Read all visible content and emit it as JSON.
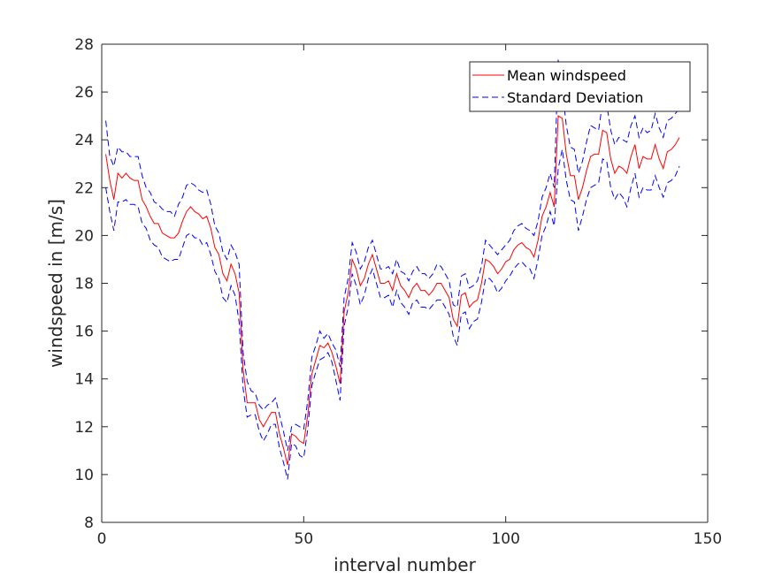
{
  "chart_data": {
    "type": "line",
    "title": "",
    "xlabel": "interval number",
    "ylabel": "windspeed in [m/s]",
    "xlim": [
      0,
      150
    ],
    "ylim": [
      8,
      28
    ],
    "xticks": [
      0,
      50,
      100,
      150
    ],
    "yticks": [
      8,
      10,
      12,
      14,
      16,
      18,
      20,
      22,
      24,
      26,
      28
    ],
    "grid": false,
    "legend_position": "top-right",
    "colors": {
      "mean": "#ff0000",
      "std": "#0000ff",
      "axis": "#262626"
    },
    "series": [
      {
        "name": "Mean windspeed",
        "style": "solid",
        "x": [
          1,
          2,
          3,
          4,
          5,
          6,
          7,
          8,
          9,
          10,
          11,
          12,
          13,
          14,
          15,
          16,
          17,
          18,
          19,
          20,
          21,
          22,
          23,
          24,
          25,
          26,
          27,
          28,
          29,
          30,
          31,
          32,
          33,
          34,
          35,
          36,
          37,
          38,
          39,
          40,
          41,
          42,
          43,
          44,
          45,
          46,
          47,
          48,
          49,
          50,
          51,
          52,
          53,
          54,
          55,
          56,
          57,
          58,
          59,
          60,
          61,
          62,
          63,
          64,
          65,
          66,
          67,
          68,
          69,
          70,
          71,
          72,
          73,
          74,
          75,
          76,
          77,
          78,
          79,
          80,
          81,
          82,
          83,
          84,
          85,
          86,
          87,
          88,
          89,
          90,
          91,
          92,
          93,
          94,
          95,
          96,
          97,
          98,
          99,
          100,
          101,
          102,
          103,
          104,
          105,
          106,
          107,
          108,
          109,
          110,
          111,
          112,
          113,
          114,
          115,
          116,
          117,
          118,
          119,
          120,
          121,
          122,
          123,
          124,
          125,
          126,
          127,
          128,
          129,
          130,
          131,
          132,
          133,
          134,
          135,
          136,
          137,
          138,
          139,
          140,
          141,
          142,
          143
        ],
        "y": [
          23.4,
          22.3,
          21.5,
          22.6,
          22.4,
          22.6,
          22.4,
          22.3,
          22.3,
          21.5,
          21.2,
          20.8,
          20.5,
          20.5,
          20.1,
          20.0,
          19.9,
          19.9,
          20.1,
          20.6,
          21.0,
          21.2,
          21.0,
          20.9,
          20.7,
          20.8,
          20.3,
          19.5,
          19.2,
          18.4,
          18.1,
          18.8,
          18.4,
          17.6,
          14.4,
          13.0,
          13.0,
          13.0,
          12.3,
          12.0,
          12.3,
          12.6,
          12.6,
          11.7,
          11.1,
          10.4,
          11.7,
          11.6,
          11.4,
          11.3,
          12.5,
          14.2,
          14.8,
          15.4,
          15.3,
          15.5,
          15.1,
          14.5,
          13.8,
          16.8,
          17.6,
          19.0,
          18.6,
          17.9,
          18.2,
          18.8,
          19.2,
          18.6,
          18.0,
          18.0,
          18.1,
          17.7,
          18.4,
          17.9,
          17.7,
          17.4,
          17.8,
          18.0,
          17.7,
          17.7,
          17.5,
          17.7,
          18.0,
          18.0,
          17.7,
          17.4,
          16.5,
          16.2,
          17.5,
          17.6,
          17.0,
          17.2,
          17.3,
          18.0,
          19.0,
          18.9,
          18.7,
          18.4,
          18.6,
          18.9,
          19.0,
          19.4,
          19.6,
          19.7,
          19.5,
          19.4,
          19.1,
          19.8,
          20.8,
          21.2,
          21.8,
          21.2,
          25.0,
          24.9,
          23.4,
          22.5,
          22.5,
          21.5,
          22.0,
          22.7,
          23.3,
          23.4,
          23.4,
          24.4,
          24.3,
          23.2,
          22.6,
          22.9,
          22.8,
          22.6,
          23.3,
          23.8,
          22.8,
          23.3,
          23.2,
          23.2,
          23.8,
          23.2,
          22.8,
          23.5,
          23.6,
          23.8,
          24.1
        ]
      },
      {
        "name": "Standard Deviation",
        "style": "dashed",
        "x": [
          1,
          2,
          3,
          4,
          5,
          6,
          7,
          8,
          9,
          10,
          11,
          12,
          13,
          14,
          15,
          16,
          17,
          18,
          19,
          20,
          21,
          22,
          23,
          24,
          25,
          26,
          27,
          28,
          29,
          30,
          31,
          32,
          33,
          34,
          35,
          36,
          37,
          38,
          39,
          40,
          41,
          42,
          43,
          44,
          45,
          46,
          47,
          48,
          49,
          50,
          51,
          52,
          53,
          54,
          55,
          56,
          57,
          58,
          59,
          60,
          61,
          62,
          63,
          64,
          65,
          66,
          67,
          68,
          69,
          70,
          71,
          72,
          73,
          74,
          75,
          76,
          77,
          78,
          79,
          80,
          81,
          82,
          83,
          84,
          85,
          86,
          87,
          88,
          89,
          90,
          91,
          92,
          93,
          94,
          95,
          96,
          97,
          98,
          99,
          100,
          101,
          102,
          103,
          104,
          105,
          106,
          107,
          108,
          109,
          110,
          111,
          112,
          113,
          114,
          115,
          116,
          117,
          118,
          119,
          120,
          121,
          122,
          123,
          124,
          125,
          126,
          127,
          128,
          129,
          130,
          131,
          132,
          133,
          134,
          135,
          136,
          137,
          138,
          139,
          140,
          141,
          142,
          143
        ],
        "y": [
          24.8,
          23.3,
          22.9,
          23.7,
          23.5,
          23.5,
          23.3,
          23.3,
          23.3,
          22.5,
          22.0,
          21.8,
          21.4,
          21.3,
          21.1,
          21.0,
          21.0,
          20.8,
          21.3,
          21.6,
          22.1,
          22.2,
          22.1,
          21.9,
          21.8,
          21.9,
          21.3,
          20.4,
          20.1,
          19.3,
          19.0,
          19.6,
          19.3,
          18.8,
          15.1,
          13.9,
          13.5,
          13.4,
          12.9,
          12.7,
          12.9,
          13.0,
          13.2,
          12.5,
          11.8,
          11.0,
          12.0,
          12.1,
          12.0,
          11.9,
          13.1,
          14.9,
          15.4,
          16.0,
          15.7,
          15.9,
          15.5,
          15.2,
          14.5,
          17.4,
          18.2,
          19.7,
          19.3,
          18.6,
          18.9,
          19.5,
          19.8,
          19.2,
          18.6,
          18.6,
          18.7,
          18.4,
          19.0,
          18.5,
          18.4,
          18.1,
          18.5,
          18.7,
          18.4,
          18.4,
          18.2,
          18.4,
          18.8,
          18.7,
          18.4,
          18.1,
          17.1,
          17.0,
          18.3,
          18.4,
          17.8,
          17.9,
          18.1,
          18.7,
          19.8,
          19.6,
          19.4,
          19.2,
          19.4,
          19.6,
          19.8,
          20.2,
          20.4,
          20.5,
          20.3,
          20.2,
          20.0,
          20.6,
          21.6,
          22.0,
          22.6,
          22.0,
          27.4,
          26.1,
          24.6,
          23.7,
          23.6,
          22.6,
          23.1,
          23.9,
          24.6,
          24.5,
          24.4,
          25.6,
          25.5,
          24.4,
          23.8,
          24.1,
          24.0,
          23.9,
          24.6,
          25.0,
          24.1,
          24.5,
          24.3,
          24.4,
          25.1,
          24.5,
          24.1,
          24.8,
          24.9,
          25.1,
          25.3
        ]
      },
      {
        "name": "",
        "style": "dashed",
        "x": [
          1,
          2,
          3,
          4,
          5,
          6,
          7,
          8,
          9,
          10,
          11,
          12,
          13,
          14,
          15,
          16,
          17,
          18,
          19,
          20,
          21,
          22,
          23,
          24,
          25,
          26,
          27,
          28,
          29,
          30,
          31,
          32,
          33,
          34,
          35,
          36,
          37,
          38,
          39,
          40,
          41,
          42,
          43,
          44,
          45,
          46,
          47,
          48,
          49,
          50,
          51,
          52,
          53,
          54,
          55,
          56,
          57,
          58,
          59,
          60,
          61,
          62,
          63,
          64,
          65,
          66,
          67,
          68,
          69,
          70,
          71,
          72,
          73,
          74,
          75,
          76,
          77,
          78,
          79,
          80,
          81,
          82,
          83,
          84,
          85,
          86,
          87,
          88,
          89,
          90,
          91,
          92,
          93,
          94,
          95,
          96,
          97,
          98,
          99,
          100,
          101,
          102,
          103,
          104,
          105,
          106,
          107,
          108,
          109,
          110,
          111,
          112,
          113,
          114,
          115,
          116,
          117,
          118,
          119,
          120,
          121,
          122,
          123,
          124,
          125,
          126,
          127,
          128,
          129,
          130,
          131,
          132,
          133,
          134,
          135,
          136,
          137,
          138,
          139,
          140,
          141,
          142,
          143
        ],
        "y": [
          22.0,
          21.0,
          20.2,
          21.4,
          21.4,
          21.5,
          21.3,
          21.3,
          21.2,
          20.5,
          20.3,
          19.8,
          19.6,
          19.5,
          19.1,
          19.0,
          18.9,
          19.0,
          19.0,
          19.5,
          20.0,
          20.1,
          19.9,
          19.9,
          19.6,
          19.7,
          19.2,
          18.5,
          18.2,
          17.4,
          17.2,
          17.9,
          17.5,
          16.4,
          13.6,
          12.4,
          12.5,
          12.5,
          11.8,
          11.4,
          11.7,
          12.1,
          12.1,
          11.1,
          10.5,
          9.8,
          11.3,
          11.2,
          10.8,
          10.7,
          11.9,
          13.7,
          14.3,
          14.8,
          14.9,
          15.1,
          14.7,
          13.9,
          13.1,
          16.2,
          17.0,
          18.4,
          17.9,
          17.1,
          17.5,
          18.2,
          18.6,
          18.0,
          17.4,
          17.4,
          17.5,
          17.0,
          17.7,
          17.2,
          17.0,
          16.7,
          17.2,
          17.3,
          17.0,
          17.0,
          16.9,
          17.1,
          17.3,
          17.3,
          17.0,
          16.7,
          15.8,
          15.4,
          16.7,
          16.8,
          16.1,
          16.4,
          16.5,
          17.2,
          18.2,
          18.2,
          18.0,
          17.6,
          17.8,
          18.1,
          18.3,
          18.6,
          18.8,
          18.9,
          18.7,
          18.6,
          18.2,
          19.0,
          20.0,
          20.4,
          21.0,
          20.4,
          22.8,
          23.6,
          22.3,
          21.5,
          21.4,
          20.2,
          20.8,
          21.5,
          22.0,
          22.1,
          22.2,
          23.2,
          23.1,
          22.0,
          21.5,
          21.8,
          21.6,
          21.2,
          22.0,
          22.6,
          21.6,
          22.0,
          21.9,
          21.9,
          22.5,
          22.0,
          21.6,
          22.2,
          22.3,
          22.5,
          22.9
        ]
      }
    ]
  }
}
